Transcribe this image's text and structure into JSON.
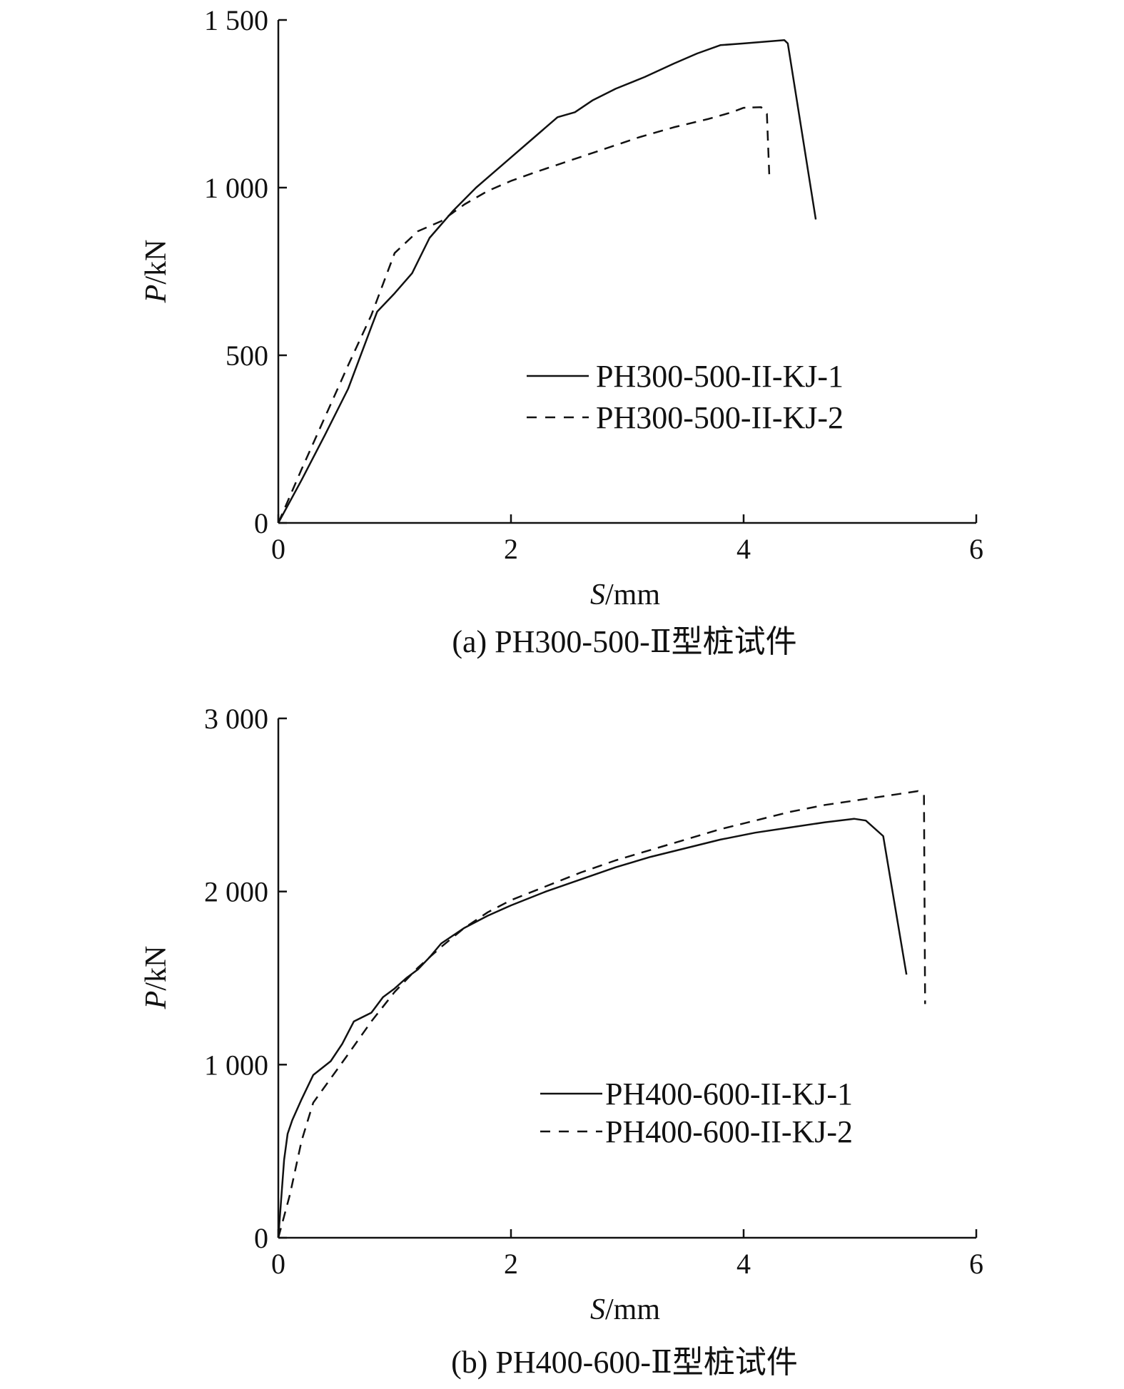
{
  "chart_data": [
    {
      "type": "line",
      "caption": "(a) PH300-500-Ⅱ型桩试件",
      "xlabel_var": "S",
      "xlabel_unit": "/mm",
      "ylabel_var": "P",
      "ylabel_unit": "/kN",
      "xlim": [
        0,
        6
      ],
      "ylim": [
        0,
        1500
      ],
      "xticks": [
        0,
        2,
        4,
        6
      ],
      "xtick_labels": [
        "0",
        "2",
        "4",
        "6"
      ],
      "yticks": [
        0,
        500,
        1000,
        1500
      ],
      "ytick_labels": [
        "0",
        "500",
        "1 000",
        "1 500"
      ],
      "grid": false,
      "legend_position": "center-right",
      "series": [
        {
          "name": "PH300-500-II-KJ-1",
          "style": "solid",
          "points": [
            [
              0,
              0
            ],
            [
              0.2,
              128
            ],
            [
              0.4,
              262
            ],
            [
              0.6,
              400
            ],
            [
              0.8,
              585
            ],
            [
              0.85,
              630
            ],
            [
              1.0,
              685
            ],
            [
              1.15,
              745
            ],
            [
              1.3,
              850
            ],
            [
              1.5,
              930
            ],
            [
              1.7,
              1000
            ],
            [
              2.0,
              1090
            ],
            [
              2.2,
              1150
            ],
            [
              2.4,
              1210
            ],
            [
              2.55,
              1225
            ],
            [
              2.7,
              1260
            ],
            [
              2.9,
              1295
            ],
            [
              3.15,
              1330
            ],
            [
              3.4,
              1370
            ],
            [
              3.6,
              1400
            ],
            [
              3.8,
              1425
            ],
            [
              4.0,
              1430
            ],
            [
              4.35,
              1440
            ],
            [
              4.38,
              1430
            ],
            [
              4.62,
              905
            ]
          ]
        },
        {
          "name": "PH300-500-II-KJ-2",
          "style": "dashed",
          "points": [
            [
              0,
              0
            ],
            [
              0.2,
              160
            ],
            [
              0.4,
              315
            ],
            [
              0.6,
              470
            ],
            [
              0.8,
              620
            ],
            [
              1.0,
              805
            ],
            [
              1.2,
              870
            ],
            [
              1.4,
              900
            ],
            [
              1.6,
              950
            ],
            [
              1.8,
              990
            ],
            [
              2.0,
              1020
            ],
            [
              2.2,
              1045
            ],
            [
              2.5,
              1080
            ],
            [
              2.8,
              1115
            ],
            [
              3.1,
              1150
            ],
            [
              3.4,
              1180
            ],
            [
              3.7,
              1205
            ],
            [
              3.9,
              1225
            ],
            [
              4.0,
              1238
            ],
            [
              4.15,
              1240
            ],
            [
              4.2,
              1220
            ],
            [
              4.22,
              1040
            ]
          ]
        }
      ]
    },
    {
      "type": "line",
      "caption": "(b) PH400-600-Ⅱ型桩试件",
      "xlabel_var": "S",
      "xlabel_unit": "/mm",
      "ylabel_var": "P",
      "ylabel_unit": "/kN",
      "xlim": [
        0,
        6
      ],
      "ylim": [
        0,
        3000
      ],
      "xticks": [
        0,
        2,
        4,
        6
      ],
      "xtick_labels": [
        "0",
        "2",
        "4",
        "6"
      ],
      "yticks": [
        0,
        1000,
        2000,
        3000
      ],
      "ytick_labels": [
        "0",
        "1 000",
        "2 000",
        "3 000"
      ],
      "grid": false,
      "legend_position": "lower-right",
      "series": [
        {
          "name": "PH400-600-II-KJ-1",
          "style": "solid",
          "points": [
            [
              0,
              0
            ],
            [
              0.05,
              450
            ],
            [
              0.08,
              600
            ],
            [
              0.12,
              680
            ],
            [
              0.2,
              800
            ],
            [
              0.3,
              940
            ],
            [
              0.45,
              1020
            ],
            [
              0.55,
              1120
            ],
            [
              0.65,
              1250
            ],
            [
              0.8,
              1300
            ],
            [
              0.9,
              1390
            ],
            [
              1.0,
              1440
            ],
            [
              1.1,
              1500
            ],
            [
              1.2,
              1550
            ],
            [
              1.3,
              1620
            ],
            [
              1.4,
              1700
            ],
            [
              1.6,
              1790
            ],
            [
              1.8,
              1860
            ],
            [
              2.0,
              1920
            ],
            [
              2.3,
              2000
            ],
            [
              2.6,
              2070
            ],
            [
              2.9,
              2140
            ],
            [
              3.2,
              2200
            ],
            [
              3.5,
              2250
            ],
            [
              3.8,
              2300
            ],
            [
              4.1,
              2340
            ],
            [
              4.4,
              2370
            ],
            [
              4.7,
              2400
            ],
            [
              4.95,
              2420
            ],
            [
              5.05,
              2410
            ],
            [
              5.2,
              2320
            ],
            [
              5.4,
              1520
            ]
          ]
        },
        {
          "name": "PH400-600-II-KJ-2",
          "style": "dashed",
          "points": [
            [
              0,
              0
            ],
            [
              0.1,
              250
            ],
            [
              0.2,
              560
            ],
            [
              0.3,
              780
            ],
            [
              0.45,
              920
            ],
            [
              0.6,
              1060
            ],
            [
              0.8,
              1250
            ],
            [
              1.0,
              1420
            ],
            [
              1.2,
              1560
            ],
            [
              1.4,
              1680
            ],
            [
              1.6,
              1790
            ],
            [
              1.8,
              1880
            ],
            [
              2.0,
              1950
            ],
            [
              2.3,
              2030
            ],
            [
              2.6,
              2110
            ],
            [
              2.9,
              2180
            ],
            [
              3.2,
              2240
            ],
            [
              3.5,
              2300
            ],
            [
              3.8,
              2360
            ],
            [
              4.1,
              2410
            ],
            [
              4.4,
              2460
            ],
            [
              4.7,
              2500
            ],
            [
              5.0,
              2530
            ],
            [
              5.3,
              2560
            ],
            [
              5.5,
              2580
            ],
            [
              5.55,
              2560
            ],
            [
              5.56,
              1350
            ]
          ]
        }
      ]
    }
  ]
}
